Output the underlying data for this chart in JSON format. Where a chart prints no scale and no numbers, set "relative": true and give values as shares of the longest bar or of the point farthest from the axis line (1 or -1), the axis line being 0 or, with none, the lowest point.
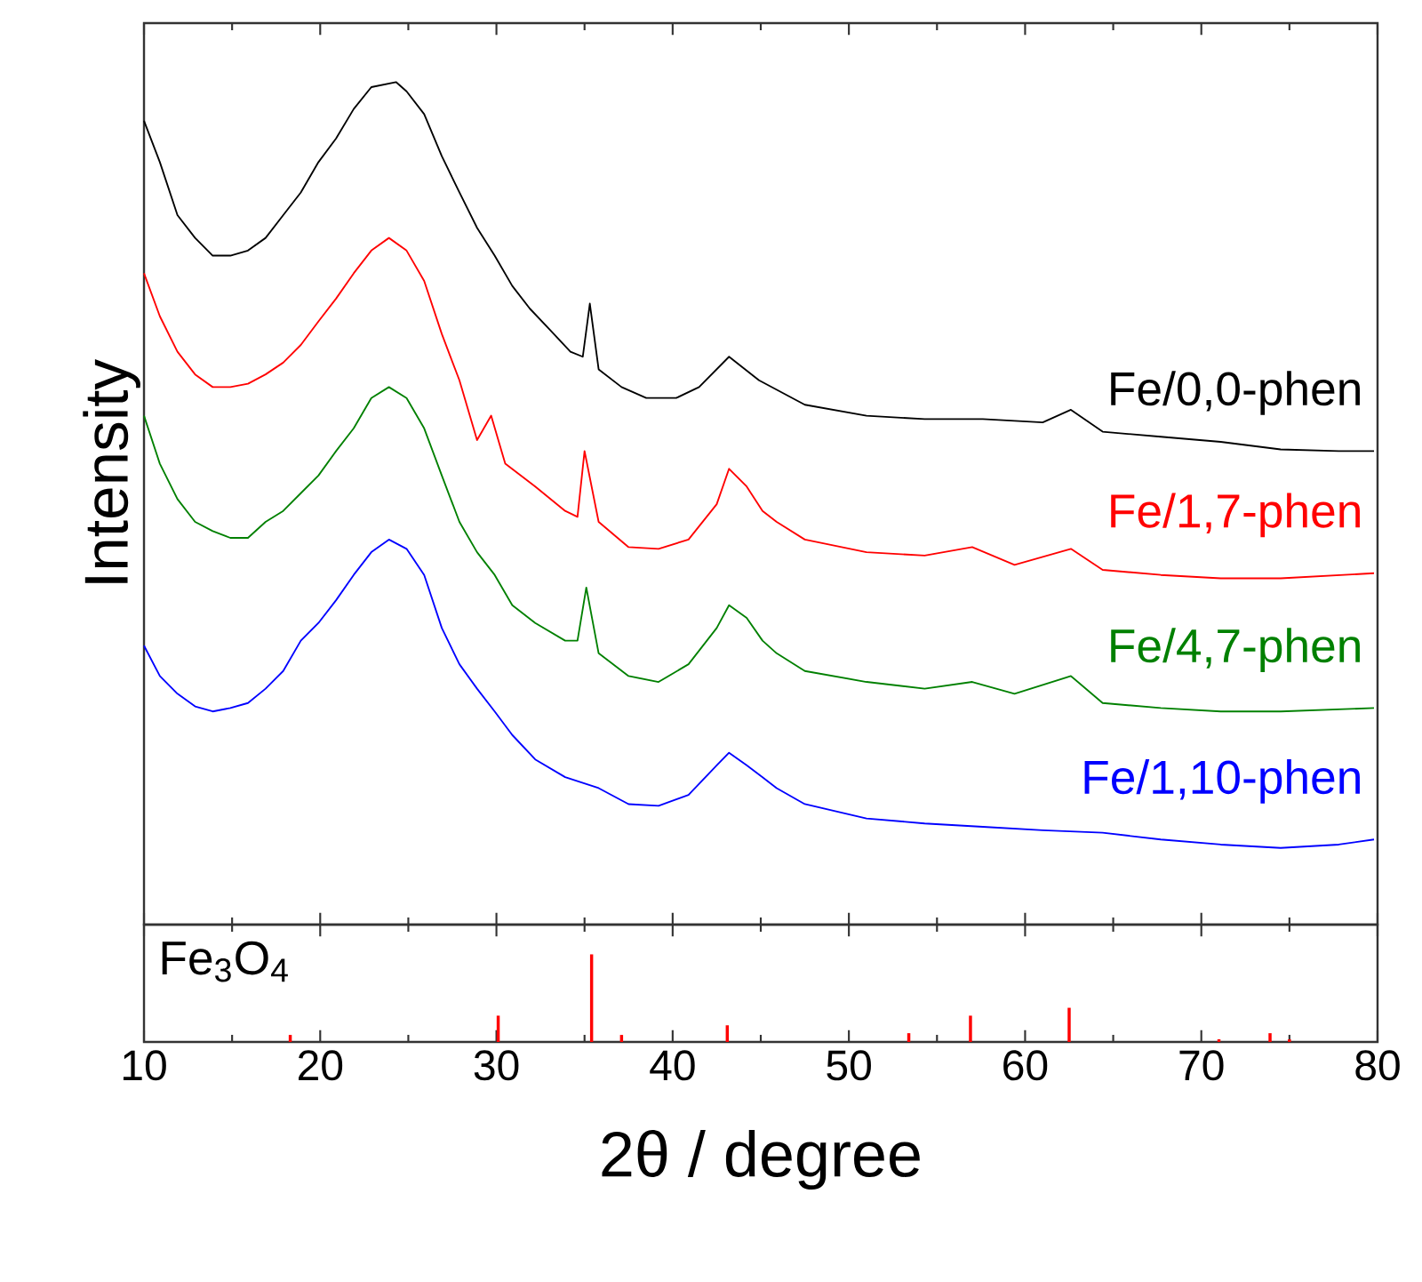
{
  "chart_data": [
    {
      "type": "line",
      "relative": true,
      "ylabel": "Intensity",
      "xlim": [
        10,
        80
      ],
      "xticks": [
        10,
        20,
        30,
        40,
        50,
        60,
        70,
        80
      ],
      "tick_labels": false,
      "series": [
        {
          "name": "Fe/0,0-phen",
          "color": "#000000",
          "x": [
            10,
            10.9,
            11.9,
            12.9,
            13.9,
            14.9,
            15.9,
            16.9,
            17.9,
            18.9,
            19.9,
            20.9,
            21.9,
            22.9,
            24.3,
            24.9,
            25.9,
            26.9,
            27.9,
            28.9,
            29.9,
            30.9,
            31.9,
            32.9,
            34.2,
            34.9,
            35.3,
            35.8,
            37.1,
            38.5,
            40.2,
            41.5,
            43.2,
            44.9,
            47.5,
            51.0,
            54.3,
            57.6,
            61.0,
            62.6,
            64.4,
            67.7,
            71.1,
            74.5,
            77.8,
            79.8
          ],
          "values": [
            0.954,
            0.905,
            0.842,
            0.815,
            0.794,
            0.794,
            0.8,
            0.815,
            0.842,
            0.869,
            0.905,
            0.933,
            0.968,
            0.994,
            1.0,
            0.989,
            0.962,
            0.912,
            0.869,
            0.827,
            0.794,
            0.758,
            0.731,
            0.709,
            0.68,
            0.674,
            0.737,
            0.659,
            0.638,
            0.625,
            0.625,
            0.638,
            0.674,
            0.646,
            0.617,
            0.604,
            0.6,
            0.6,
            0.596,
            0.611,
            0.585,
            0.579,
            0.573,
            0.564,
            0.562,
            0.562
          ]
        },
        {
          "name": "Fe/1,7-phen",
          "color": "#ff0000",
          "x": [
            10,
            10.9,
            11.9,
            12.9,
            13.9,
            14.9,
            15.9,
            16.9,
            17.9,
            18.9,
            19.9,
            20.9,
            21.9,
            22.9,
            23.9,
            24.9,
            25.9,
            26.9,
            27.9,
            28.9,
            29.7,
            30.5,
            32.2,
            33.9,
            34.6,
            35.0,
            35.8,
            37.5,
            39.2,
            40.9,
            42.5,
            43.2,
            44.2,
            45.1,
            45.9,
            47.5,
            51.0,
            54.3,
            57.0,
            59.4,
            62.6,
            64.4,
            67.7,
            71.1,
            74.5,
            79.8
          ],
          "values": [
            0.773,
            0.722,
            0.68,
            0.653,
            0.638,
            0.638,
            0.642,
            0.653,
            0.667,
            0.688,
            0.716,
            0.743,
            0.773,
            0.8,
            0.815,
            0.8,
            0.764,
            0.701,
            0.646,
            0.575,
            0.604,
            0.547,
            0.52,
            0.491,
            0.484,
            0.562,
            0.478,
            0.448,
            0.446,
            0.457,
            0.499,
            0.541,
            0.52,
            0.491,
            0.478,
            0.457,
            0.442,
            0.438,
            0.448,
            0.427,
            0.446,
            0.421,
            0.415,
            0.411,
            0.411,
            0.417
          ]
        },
        {
          "name": "Fe/4,7-phen",
          "color": "#008000",
          "x": [
            10,
            10.9,
            11.9,
            12.9,
            13.9,
            14.9,
            15.9,
            16.9,
            17.9,
            18.9,
            19.9,
            20.9,
            21.9,
            22.9,
            23.9,
            24.9,
            25.9,
            26.9,
            27.9,
            28.9,
            29.9,
            30.9,
            32.2,
            33.9,
            34.6,
            35.1,
            35.8,
            37.5,
            39.2,
            40.9,
            42.5,
            43.2,
            44.2,
            45.1,
            45.9,
            47.5,
            51.0,
            54.3,
            57.0,
            59.4,
            62.6,
            64.4,
            67.7,
            71.1,
            74.5,
            79.8
          ],
          "values": [
            0.604,
            0.547,
            0.505,
            0.478,
            0.467,
            0.459,
            0.459,
            0.478,
            0.491,
            0.512,
            0.533,
            0.562,
            0.589,
            0.625,
            0.638,
            0.625,
            0.589,
            0.533,
            0.478,
            0.442,
            0.415,
            0.379,
            0.358,
            0.337,
            0.337,
            0.4,
            0.322,
            0.295,
            0.288,
            0.309,
            0.352,
            0.379,
            0.364,
            0.337,
            0.322,
            0.301,
            0.288,
            0.28,
            0.288,
            0.274,
            0.295,
            0.263,
            0.257,
            0.253,
            0.253,
            0.257
          ]
        },
        {
          "name": "Fe/1,10-phen",
          "color": "#0000ff",
          "x": [
            10,
            10.9,
            11.9,
            12.9,
            13.9,
            14.9,
            15.9,
            16.9,
            17.9,
            18.9,
            19.9,
            20.9,
            21.9,
            22.9,
            23.9,
            24.9,
            25.9,
            26.9,
            27.9,
            28.9,
            29.9,
            30.9,
            32.2,
            33.9,
            35.8,
            37.5,
            39.2,
            40.9,
            42.5,
            43.2,
            44.2,
            45.1,
            45.9,
            47.5,
            51.0,
            54.3,
            57.6,
            61.0,
            64.4,
            67.7,
            71.1,
            74.5,
            77.8,
            79.8
          ],
          "values": [
            0.331,
            0.295,
            0.274,
            0.259,
            0.253,
            0.257,
            0.263,
            0.28,
            0.301,
            0.337,
            0.358,
            0.385,
            0.415,
            0.442,
            0.457,
            0.446,
            0.415,
            0.352,
            0.309,
            0.28,
            0.253,
            0.225,
            0.196,
            0.175,
            0.162,
            0.143,
            0.141,
            0.154,
            0.189,
            0.204,
            0.189,
            0.175,
            0.162,
            0.143,
            0.126,
            0.12,
            0.116,
            0.112,
            0.109,
            0.101,
            0.095,
            0.091,
            0.095,
            0.101
          ]
        }
      ]
    },
    {
      "type": "bar",
      "relative": true,
      "xlabel": "2θ / degree",
      "xlim": [
        10,
        80
      ],
      "xticks": [
        10,
        20,
        30,
        40,
        50,
        60,
        70,
        80
      ],
      "tick_labels": "x",
      "annotations": [
        "Fe$_{3}$O$_{4}$"
      ],
      "series": [
        {
          "color": "#ff0000",
          "x": [
            18.3,
            30.1,
            35.4,
            37.1,
            43.1,
            53.4,
            56.9,
            62.5,
            71.0,
            73.9,
            75.0
          ],
          "values": [
            0.08,
            0.3,
            1.0,
            0.08,
            0.19,
            0.1,
            0.3,
            0.39,
            0.03,
            0.1,
            0.03
          ]
        }
      ]
    }
  ]
}
